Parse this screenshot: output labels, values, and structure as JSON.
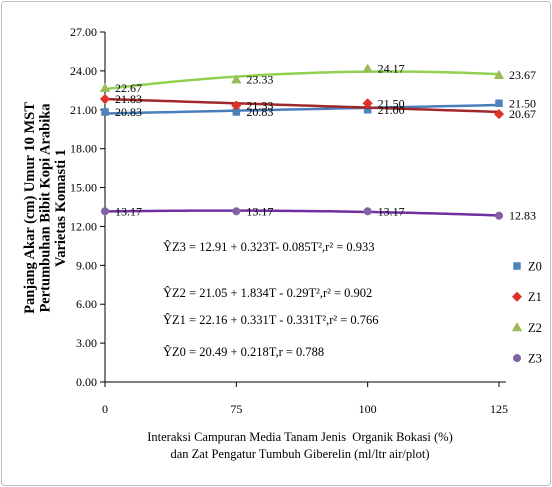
{
  "chart_data": {
    "type": "line",
    "title": "",
    "ylabel": [
      "Panjang Akar (cm) Umur 10 MST",
      "Pertumbuhan Bibit Kopi Arabika",
      "Varietas Komasti 1"
    ],
    "xlabel": [
      "Interaksi Campuran Media Tanam Jenis  Organik Bokasi (%)",
      "dan Zat Pengatur Tumbuh Giberelin (ml/ltr air/plot)"
    ],
    "categories": [
      "0",
      "75",
      "100",
      "125"
    ],
    "ylim": [
      0,
      27
    ],
    "yticks": [
      0,
      3,
      6,
      9,
      12,
      15,
      18,
      21,
      24,
      27
    ],
    "ytick_labels": [
      "0.00",
      "3.00",
      "6.00",
      "9.00",
      "12.00",
      "15.00",
      "18.00",
      "21.00",
      "24.00",
      "27.00"
    ],
    "grid": false,
    "legend": "right",
    "series": [
      {
        "name": "Z0",
        "values": [
          20.83,
          20.83,
          21.0,
          21.5
        ],
        "labels": [
          "20.83",
          "20.83",
          "21.00",
          "21.50"
        ],
        "marker": "square",
        "marker_color": "#4F81BD",
        "line_color": "#4A7EBB",
        "trendline": "linear"
      },
      {
        "name": "Z1",
        "values": [
          21.83,
          21.33,
          21.5,
          20.67
        ],
        "labels": [
          "21.83",
          "21.33",
          "21.50",
          "20.67"
        ],
        "marker": "diamond",
        "marker_color": "#E0312B",
        "line_color": "#A0282A",
        "trendline": "linear"
      },
      {
        "name": "Z2",
        "values": [
          22.67,
          23.33,
          24.17,
          23.67
        ],
        "labels": [
          "22.67",
          "23.33",
          "24.17",
          "23.67"
        ],
        "marker": "triangle",
        "marker_color": "#9BBB59",
        "line_color": "#92D050",
        "trendline": "quadratic"
      },
      {
        "name": "Z3",
        "values": [
          13.17,
          13.17,
          13.17,
          12.83
        ],
        "labels": [
          "13.17",
          "13.17",
          "13.17",
          "12.83"
        ],
        "marker": "circle",
        "marker_color": "#8064A2",
        "line_color": "#7030A0",
        "trendline": "quadratic"
      }
    ],
    "equations": [
      "ŶZ3 = 12.91 + 0.323T- 0.085T²,r² = 0.933",
      "ŶZ2 = 21.05 + 1.834T - 0.29T²,r² = 0.902",
      "ŶZ1 = 22.16 + 0.331T - 0.331T²,r² = 0.766",
      "ŶZ0 = 20.49 + 0.218T,r = 0.788"
    ]
  }
}
